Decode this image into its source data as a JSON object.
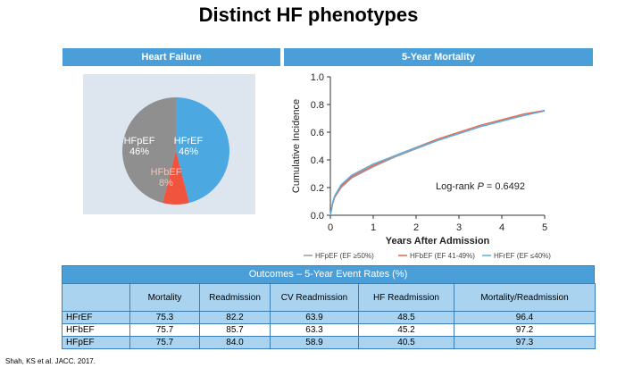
{
  "title": "Distinct HF phenotypes",
  "banners": {
    "left": "Heart Failure",
    "right": "5-Year Mortality"
  },
  "chart_data": [
    {
      "type": "pie",
      "title": "Heart Failure",
      "slices": [
        {
          "label": "HFrEF",
          "value_label": "46%",
          "value": 46,
          "color": "#4ba8e0",
          "label_color": "#ffffff"
        },
        {
          "label": "HFbEF",
          "value_label": "8%",
          "value": 8,
          "color": "#f0533e",
          "label_color": "#f5c4ba"
        },
        {
          "label": "HFpEF",
          "value_label": "46%",
          "value": 46,
          "color": "#8f8f8f",
          "label_color": "#ffffff"
        }
      ]
    },
    {
      "type": "line",
      "title": "5-Year Mortality",
      "xlabel": "Years After Admission",
      "ylabel": "Cumulative Incidence",
      "xlim": [
        0,
        5
      ],
      "ylim": [
        0,
        1
      ],
      "xticks": [
        "0",
        "1",
        "2",
        "3",
        "4",
        "5"
      ],
      "yticks": [
        "0.0",
        "0.2",
        "0.4",
        "0.6",
        "0.8",
        "1.0"
      ],
      "annotation": "Log-rank P = 0.6492",
      "series": [
        {
          "name": "HFpEF (EF ≥50%)",
          "color": "#9a9a9a",
          "x": [
            0,
            0.05,
            0.1,
            0.25,
            0.5,
            1,
            1.5,
            2,
            2.5,
            3,
            3.5,
            4,
            4.5,
            5
          ],
          "y": [
            0,
            0.08,
            0.13,
            0.2,
            0.27,
            0.35,
            0.42,
            0.48,
            0.54,
            0.59,
            0.64,
            0.68,
            0.72,
            0.757
          ]
        },
        {
          "name": "HFbEF (EF 41-49%)",
          "color": "#e8654f",
          "x": [
            0,
            0.05,
            0.1,
            0.25,
            0.5,
            1,
            1.5,
            2,
            2.5,
            3,
            3.5,
            4,
            4.5,
            5
          ],
          "y": [
            0,
            0.08,
            0.13,
            0.21,
            0.28,
            0.36,
            0.43,
            0.49,
            0.55,
            0.6,
            0.65,
            0.69,
            0.73,
            0.757
          ]
        },
        {
          "name": "HFrEF (EF ≤40%)",
          "color": "#5aaee0",
          "x": [
            0,
            0.05,
            0.1,
            0.25,
            0.5,
            1,
            1.5,
            2,
            2.5,
            3,
            3.5,
            4,
            4.5,
            5
          ],
          "y": [
            0,
            0.09,
            0.14,
            0.22,
            0.29,
            0.37,
            0.43,
            0.49,
            0.54,
            0.59,
            0.64,
            0.68,
            0.72,
            0.753
          ]
        }
      ],
      "legend_position": "bottom"
    },
    {
      "type": "table",
      "title": "Outcomes – 5-Year Event Rates (%)",
      "columns": [
        "",
        "Mortality",
        "Readmission",
        "CV Readmission",
        "HF Readmission",
        "Mortality/Readmission"
      ],
      "rows": [
        {
          "label": "HFrEF",
          "values": [
            "75.3",
            "82.2",
            "63.9",
            "48.5",
            "96.4"
          ]
        },
        {
          "label": "HFbEF",
          "values": [
            "75.7",
            "85.7",
            "63.3",
            "45.2",
            "97.2"
          ]
        },
        {
          "label": "HFpEF",
          "values": [
            "75.7",
            "84.0",
            "58.9",
            "40.5",
            "97.3"
          ]
        }
      ]
    }
  ],
  "citation": "Shah, KS et al. JACC. 2017."
}
